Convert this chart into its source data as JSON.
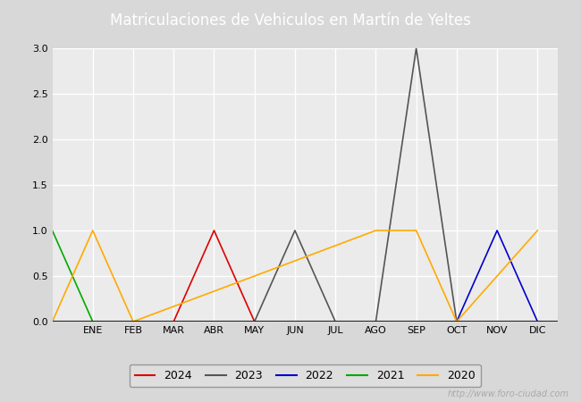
{
  "title": "Matriculaciones de Vehiculos en Martín de Yeltes",
  "title_color": "white",
  "title_bg_color": "#4a6fa5",
  "months": [
    "ENE",
    "FEB",
    "MAR",
    "ABR",
    "MAY",
    "JUN",
    "JUL",
    "AGO",
    "SEP",
    "OCT",
    "NOV",
    "DIC"
  ],
  "series": [
    {
      "label": "2024",
      "color": "#dd0000",
      "data": {
        "MAR": 0,
        "ABR": 1,
        "MAY": 0
      }
    },
    {
      "label": "2023",
      "color": "#555555",
      "data": {
        "MAY": 0,
        "JUN": 1,
        "JUL": 0,
        "AGO": 0,
        "SEP": 3,
        "OCT": 0
      }
    },
    {
      "label": "2022",
      "color": "#0000cc",
      "data": {
        "OCT": 0,
        "NOV": 1,
        "DIC": 0
      }
    },
    {
      "label": "2021",
      "color": "#00aa00",
      "data": {
        "DIC_prev": 1,
        "ENE": 0
      }
    },
    {
      "label": "2020",
      "color": "#ffaa00",
      "data": {
        "DIC_prev": 0,
        "ENE": 1,
        "FEB": 0,
        "AGO": 1,
        "SEP": 1,
        "OCT": 0,
        "DIC": 1
      }
    }
  ],
  "ylim": [
    0.0,
    3.0
  ],
  "yticks": [
    0.0,
    0.5,
    1.0,
    1.5,
    2.0,
    2.5,
    3.0
  ],
  "bg_color": "#d8d8d8",
  "plot_bg_color": "#ebebeb",
  "grid_color": "#ffffff",
  "watermark": "http://www.foro-ciudad.com",
  "legend_order": [
    "2024",
    "2023",
    "2022",
    "2021",
    "2020"
  ]
}
